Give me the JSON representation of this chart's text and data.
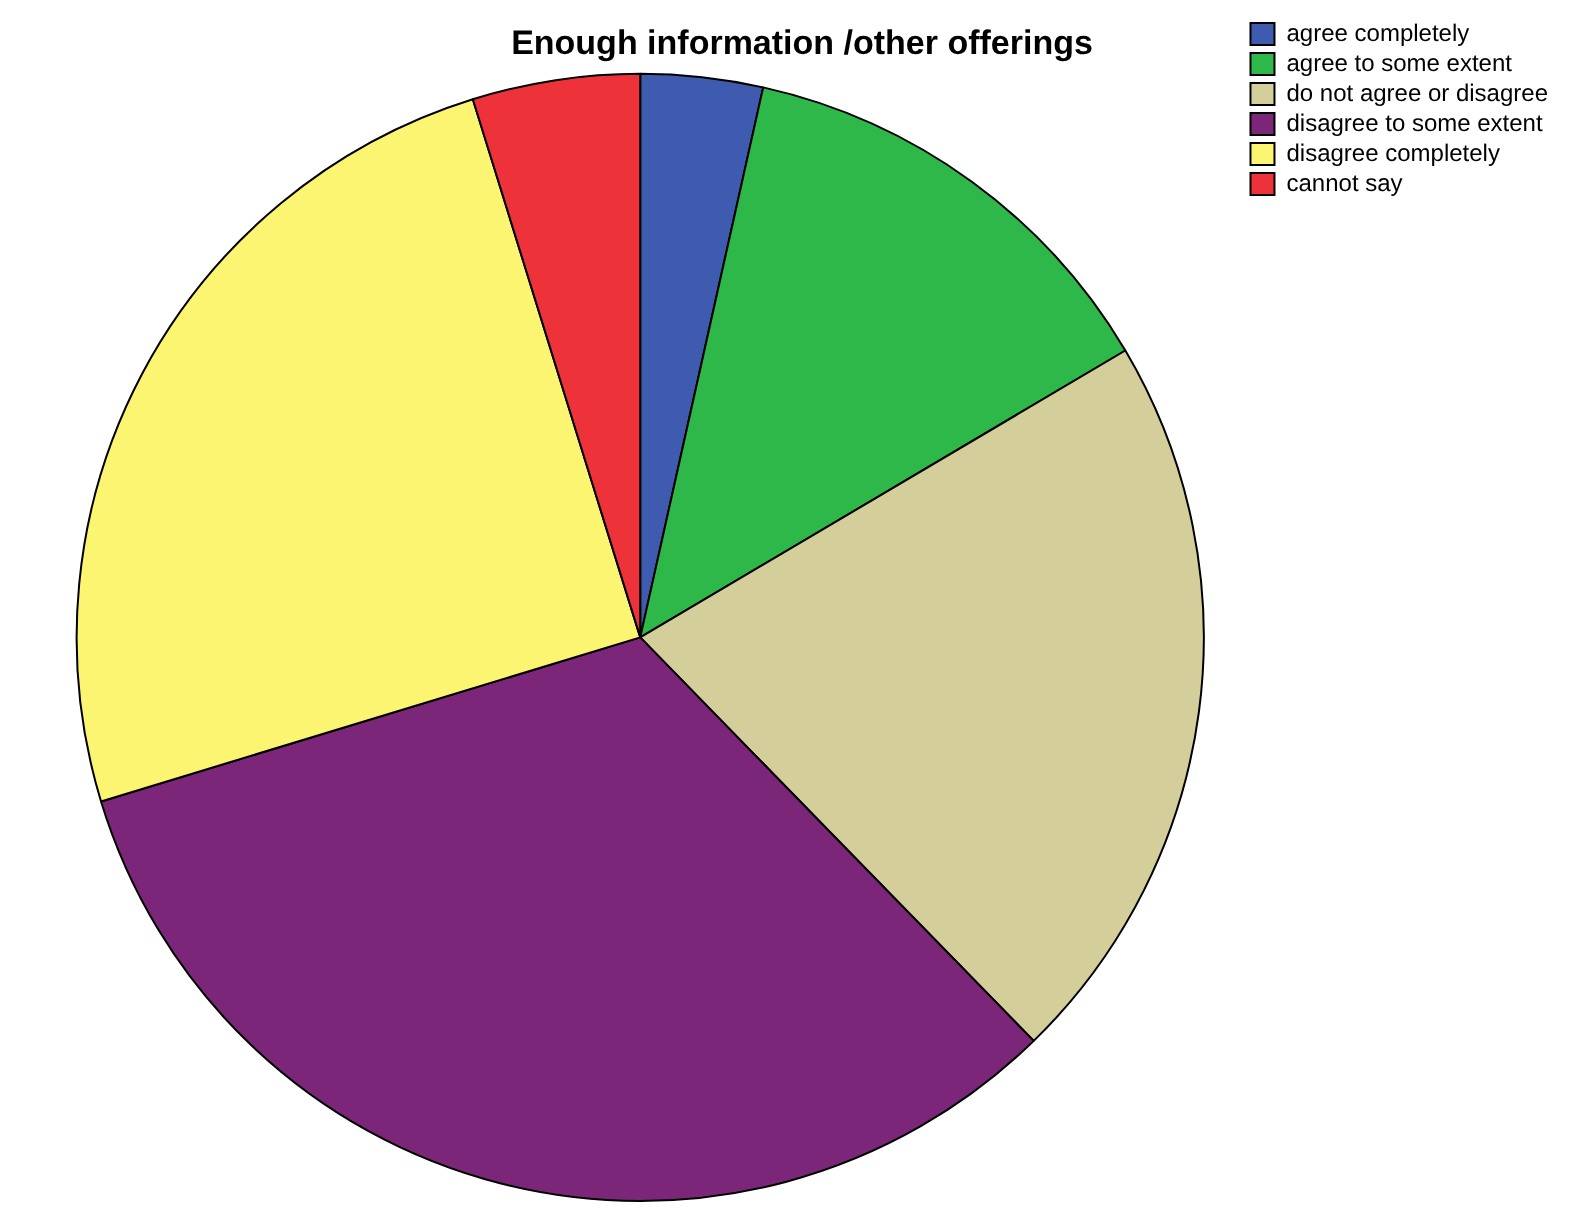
{
  "chart_data": {
    "type": "pie",
    "title": "Enough information /other offerings",
    "categories": [
      "agree completely",
      "agree to some extent",
      "do not agree or disagree",
      "disagree to some extent",
      "disagree completely",
      "cannot say"
    ],
    "values": [
      3.5,
      13.0,
      21.2,
      32.6,
      24.9,
      4.8
    ],
    "colors": [
      "#3f5bb0",
      "#2fb84a",
      "#d4cf9a",
      "#7b2679",
      "#fbf571",
      "#ee3239"
    ],
    "legend": "top right"
  }
}
